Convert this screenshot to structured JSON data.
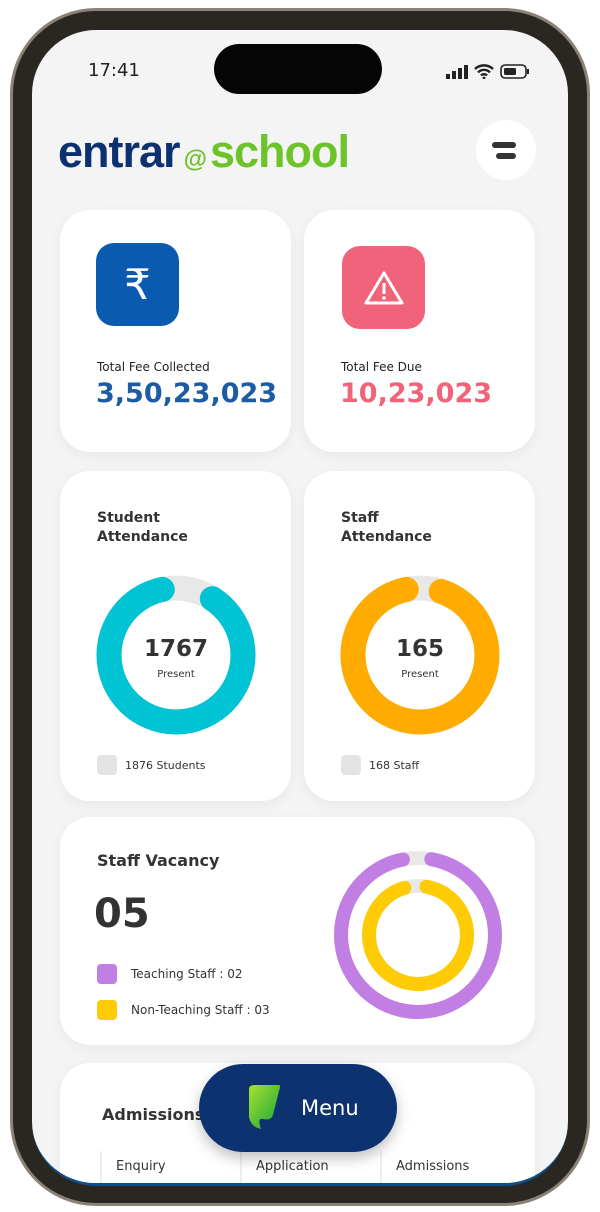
{
  "status": {
    "time": "17:41"
  },
  "brand": {
    "name_part1": "entrar",
    "at": "@",
    "name_part2": "school"
  },
  "fees": {
    "collected_label": "Total Fee Collected",
    "collected_value": "3,50,23,023",
    "due_label": "Total Fee Due",
    "due_value": "10,23,023"
  },
  "student_attendance": {
    "title": "Student Attendance",
    "present": "1767",
    "present_label": "Present",
    "total": "1876 Students",
    "fraction": 0.942,
    "color": "#00c3d4"
  },
  "staff_attendance": {
    "title": "Staff Attendance",
    "present": "165",
    "present_label": "Present",
    "total": "168 Staff",
    "fraction": 0.982,
    "color": "#ffab00"
  },
  "vacancy": {
    "title": "Staff Vacancy",
    "count": "05",
    "teaching": "Teaching Staff : 02",
    "non_teaching": "Non-Teaching Staff : 03",
    "teaching_color": "#c17fe3",
    "non_teaching_color": "#ffcb05"
  },
  "admissions": {
    "title": "Admissions",
    "columns": [
      "Enquiry",
      "Application",
      "Admissions"
    ]
  },
  "fab": {
    "label": "Menu"
  },
  "colors": {
    "brand_blue": "#0b3170",
    "brand_green": "#6cc42a",
    "fee_blue": "#0a5bb0",
    "fee_red": "#f0637a"
  }
}
